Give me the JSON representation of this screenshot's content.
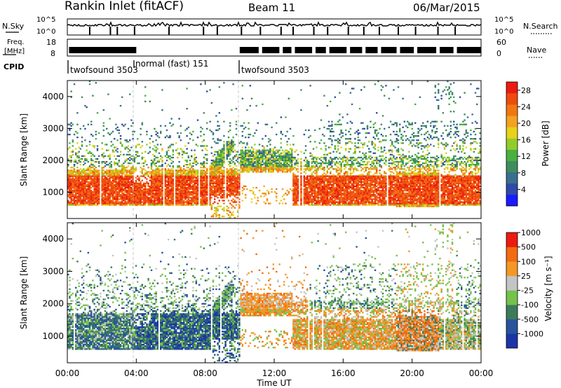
{
  "header": {
    "station": "Rankin Inlet (fitACF)",
    "beam": "Beam 11",
    "date": "06/Mar/2015"
  },
  "top_panels": {
    "nsky_label": "N.Sky",
    "nsky_ticks": [
      "10^5",
      "10^0"
    ],
    "nsearch_label": "N.Search",
    "nsearch_ticks": [
      "10^5",
      "10^0"
    ],
    "freq_label_1": "Freq.",
    "freq_label_2": "[MHz]",
    "freq_ticks": [
      "18",
      "8"
    ],
    "nave_label": "Nave",
    "nave_ticks": [
      "60",
      "0"
    ],
    "cpid_label": "CPID",
    "cpid_segments": [
      {
        "name": "twofsound 3503",
        "start_hour": 0.0
      },
      {
        "name": "normal (fast) 151",
        "start_hour": 4.0
      },
      {
        "name": "twofsound 3503",
        "start_hour": 10.0
      }
    ]
  },
  "chart_data": [
    {
      "type": "heatmap",
      "panel": "power",
      "ylabel": "Slant Range [km]",
      "x_ticks": [
        "00:00",
        "04:00",
        "08:00",
        "12:00",
        "16:00",
        "20:00",
        "00:00"
      ],
      "y_ticks": [
        "1000",
        "2000",
        "3000",
        "4000"
      ],
      "xlim_hours": [
        0,
        24
      ],
      "ylim_km": [
        180,
        4500
      ],
      "colorbar": {
        "label": "Power [dB]",
        "ticks": [
          "28",
          "24",
          "20",
          "16",
          "12",
          "8",
          "4"
        ],
        "range": [
          0,
          30
        ],
        "colors": [
          "#1a1aff",
          "#2f49a8",
          "#3a6e8e",
          "#3f8c5c",
          "#47b040",
          "#93cc2a",
          "#e7d21a",
          "#f3a221",
          "#f27712",
          "#ee4b0f",
          "#ec1b0f"
        ]
      }
    },
    {
      "type": "heatmap",
      "panel": "velocity",
      "ylabel": "Slant Range [km]",
      "xlabel": "Time UT",
      "x_ticks": [
        "00:00",
        "04:00",
        "08:00",
        "12:00",
        "16:00",
        "20:00",
        "00:00"
      ],
      "y_ticks": [
        "1000",
        "2000",
        "3000",
        "4000"
      ],
      "xlim_hours": [
        0,
        24
      ],
      "ylim_km": [
        180,
        4500
      ],
      "colorbar": {
        "label": "Velocity [m s⁻¹]",
        "ticks": [
          "1000",
          "500",
          "100",
          "25",
          "-25",
          "-100",
          "-500",
          "-1000"
        ],
        "colors": [
          "#1b35a6",
          "#27549a",
          "#3d7a5b",
          "#74c24b",
          "#c4c4c4",
          "#f39825",
          "#f26b10",
          "#ec1b0f"
        ]
      }
    }
  ]
}
